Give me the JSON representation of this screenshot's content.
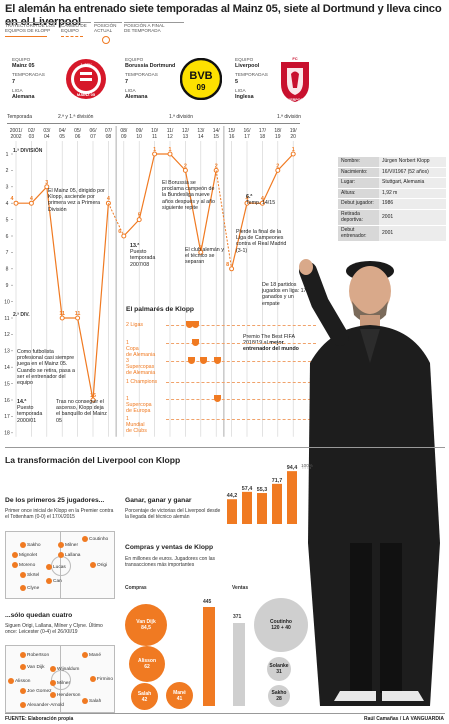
{
  "title": "El alemán ha entrenado siete temporadas al Mainz 05, siete al Dortmund y lleva cinco en el Liverpool",
  "legend": [
    {
      "line1": "TRAYECTORIA DE LOS",
      "line2": "EQUIPOS DE KLOPP"
    },
    {
      "line1": "CAMBIO DE",
      "line2": "EQUIPO"
    },
    {
      "line1": "POSICIÓN",
      "line2": "ACTUAL"
    },
    {
      "line1": "POSICIÓN A FINAL",
      "line2": "DE TEMPORADA"
    }
  ],
  "clubs": [
    {
      "equipo_k": "EQUIPO",
      "equipo": "Mainz 05",
      "temp_k": "TEMPORADAS",
      "temp": "7",
      "liga_k": "LIGA",
      "liga": "Alemana",
      "badge": "MAINZ 05",
      "badge_num": "1. FSV"
    },
    {
      "equipo_k": "EQUIPO",
      "equipo": "Borussia Dortmund",
      "temp_k": "TEMPORADAS",
      "temp": "7",
      "liga_k": "LIGA",
      "liga": "Alemana",
      "badge": "BVB",
      "badge_num": "09"
    },
    {
      "equipo_k": "EQUIPO",
      "equipo": "Liverpool",
      "temp_k": "TEMPORADAS",
      "temp": "5",
      "liga_k": "LIGA",
      "liga": "Inglesa",
      "badge": "LIVERPOOL",
      "badge_num": "FC"
    }
  ],
  "axis": {
    "temporada": "Temporada",
    "division_2": "2.ª y 1.ª división",
    "division_1": "1.ª división",
    "div1_marker": "1.ª DIVISIÓN",
    "div2_marker": "2.ª DIV.",
    "seasons_top": [
      "2001/",
      "02/",
      "03/",
      "04/",
      "05/",
      "06/",
      "07/",
      "08/",
      "09/",
      "10/",
      "11/",
      "12/",
      "13/",
      "14/",
      "15/",
      "16/",
      "17/",
      "18/",
      "19/"
    ],
    "seasons_bot": [
      "2002",
      "03",
      "04",
      "05",
      "06",
      "07",
      "08",
      "09",
      "10",
      "11",
      "12",
      "13",
      "14",
      "15",
      "16",
      "17",
      "18",
      "19",
      "20"
    ],
    "ranks": [
      "1",
      "2",
      "3",
      "4",
      "5",
      "6",
      "7",
      "8",
      "9",
      "10",
      "11",
      "12",
      "13",
      "14",
      "15",
      "16",
      "17",
      "18"
    ]
  },
  "chart_data": [
    {
      "type": "line",
      "title": "",
      "xlabel": "Temporada",
      "ylabel": "",
      "y_inverted": true,
      "ylim": [
        18,
        1
      ],
      "series": [
        {
          "values": [
            4,
            4,
            3,
            11,
            11,
            16,
            4
          ],
          "labels": [
            "4",
            "4",
            "3",
            "11",
            "11",
            "16",
            "4"
          ],
          "x": [
            "2001/2002",
            "02/03",
            "03/04",
            "04/05",
            "05/06",
            "06/07",
            "07/08"
          ]
        },
        {
          "values": [
            6,
            5,
            1,
            1,
            2,
            7,
            2
          ],
          "labels": [
            "6",
            "5",
            "1",
            "1",
            "2",
            "7",
            "2"
          ],
          "x": [
            "08/09",
            "09/10",
            "10/11",
            "11/12",
            "12/13",
            "13/14",
            "14/15"
          ]
        },
        {
          "values": [
            8,
            4,
            4,
            2,
            1
          ],
          "labels": [
            "8",
            "4",
            "4",
            "2",
            "1"
          ],
          "x": [
            "15/16",
            "16/17",
            "17/18",
            "18/19",
            "19/20"
          ]
        }
      ]
    },
    {
      "type": "bar",
      "title": "Ganar, ganar y ganar",
      "categories": [
        "15/16",
        "16/17",
        "17/18",
        "18/19",
        "19/20",
        "2020"
      ],
      "values": [
        44.2,
        57.4,
        55.3,
        71.7,
        94.4,
        100
      ],
      "labels": [
        "44,2",
        "57,4",
        "55,3",
        "71,7",
        "94,4",
        "100%"
      ],
      "ylim": [
        0,
        100
      ]
    }
  ],
  "notes": {
    "mainz_up": "El Mainz 05, dirigido por Klopp, asciende por primera vez a Primera División",
    "mainz_start": "Como futbolista profesional casi siempre juega en el Mainz 05. Cuando se retira, pasa a ser el entrenador del equipo",
    "mainz_14": "14.ª",
    "mainz_14b": "Puesto temporada 2000/01",
    "mainz_fail": "Tras no conseguir el ascenso, Klopp deja el banquillo del Mainz 05",
    "dort_13": "13.ª",
    "dort_13b": "Puesto temporada 2007/08",
    "dort_champ": "El Borussia se proclama campeón de la Bundesliga nueve años después y al año siguiente repite",
    "dort_leave": "El club alemán y el técnico se separan",
    "liv_6": "6.ª",
    "liv_6b": "Temp. 14/15",
    "liv_final": "Pierde la final de la Liga de Campeones contra el Real Madrid (3-1)",
    "liv_streak": "De 18 partidos jugados en liga: 17 ganados y un empate",
    "best_a": "Premio The Best FIFA 2018/19 al",
    "best_b": "mejor entrenador del mundo"
  },
  "profile": [
    {
      "k": "Nombre:",
      "v": "Jürgen Norbert Klopp"
    },
    {
      "k": "Nacimiento:",
      "v": "16/VI/1967 (52 años)"
    },
    {
      "k": "Lugar:",
      "v": "Stuttgart, Alemania"
    },
    {
      "k": "Altura:",
      "v": "1,92 m"
    },
    {
      "k": "Debut jugador:",
      "v": "1986"
    },
    {
      "k": "Retirada deportiva:",
      "v": "2001"
    },
    {
      "k": "Debut entrenador:",
      "v": "2001"
    }
  ],
  "palmares": {
    "title": "El palmarés de Klopp",
    "items": [
      "2 Ligas",
      "1 Copa de Alemania",
      "3 Supercopas de Alemania",
      "1 Champions",
      "1 Supercopa de Europa",
      "1 Mundial de Clubs"
    ],
    "item_lines": [
      [
        "2 Ligas"
      ],
      [
        "1",
        "Copa",
        "de Alemania"
      ],
      [
        "3",
        "Supercopas",
        "de Alemania"
      ],
      [
        "1 Champions"
      ],
      [
        "1",
        "Supercopa",
        "de Europa"
      ],
      [
        "1",
        "Mundial",
        "de Clubs"
      ]
    ]
  },
  "section2": {
    "title": "La transformación del Liverpool con Klopp",
    "first_title": "De los primeros 25 jugadores...",
    "first_text": "Primer once inicial de Klopp en la Premier contra el Tottenham (0-0) el 17/X/2015",
    "first_players": [
      "Moreno",
      "Sakho",
      "Mignolet",
      "Skrtel",
      "Clyne",
      "Lucas",
      "Can",
      "Milner",
      "Coutinho",
      "Origi",
      "Lallana"
    ],
    "last_title": "...sólo quedan cuatro",
    "last_text": "Siguen Origi, Lallana, Milner y Clyne. Último once: Leicester (0-4) el 26/XII/19",
    "last_players": [
      "Robertson",
      "Van Dijk",
      "Alisson",
      "Joe Gomez",
      "Alexander-Arnold",
      "Wijnaldum",
      "Milner",
      "Henderson",
      "Mané",
      "Salah",
      "Firmino"
    ],
    "win_title": "Ganar, ganar y ganar",
    "win_text": "Porcentaje de victorias del Liverpool desde la llegada del técnico alemán",
    "buy_title": "Compras y ventas de Klopp",
    "buy_text": "En millones de euros. Jugadores con las transacciones más importantes",
    "compras": "Compras",
    "ventas": "Ventas",
    "compras_total": "445",
    "ventas_total": "371",
    "buys": [
      {
        "name": "Van Dijk",
        "val": "84,5"
      },
      {
        "name": "Alisson",
        "val": "62"
      },
      {
        "name": "Salah",
        "val": "42"
      },
      {
        "name": "Mané",
        "val": "41"
      }
    ],
    "sells": [
      {
        "name": "Coutinho",
        "val": "120 + 40"
      },
      {
        "name": "Solanke",
        "val": "31"
      },
      {
        "name": "Sakho",
        "val": "28"
      }
    ]
  },
  "footer_left": "FUENTE: Elaboración propia",
  "footer_right": "Raúl Camañas / LA VANGUARDIA",
  "colors": {
    "accent": "#f07a22",
    "mainz_red": "#d6182a",
    "bvb_yellow": "#fde100",
    "liverpool_red": "#c8102e",
    "grid": "#d0d0d0"
  }
}
